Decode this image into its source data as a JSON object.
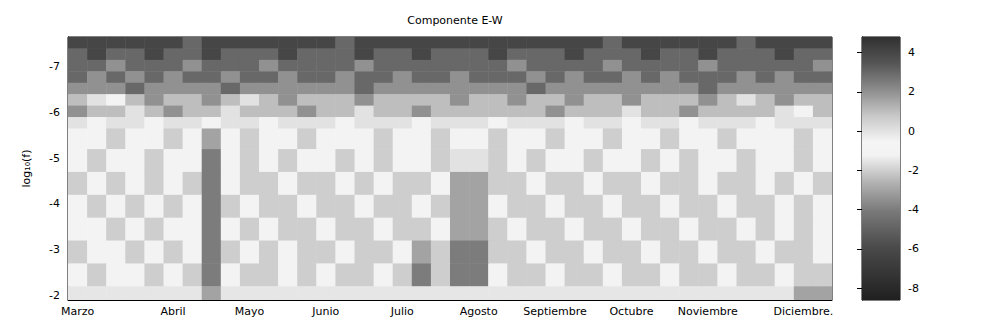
{
  "chart_data": {
    "type": "heatmap",
    "title": "Componente E-W",
    "y_label": "log₁₀(f)",
    "categories": [
      "Marzo",
      null,
      null,
      null,
      null,
      "Abril",
      null,
      null,
      null,
      "Mayo",
      null,
      null,
      null,
      "Junio",
      null,
      null,
      null,
      "Julio",
      null,
      null,
      null,
      "Agosto",
      null,
      null,
      null,
      "Septiembre",
      null,
      null,
      null,
      "Octubre",
      null,
      null,
      null,
      "Noviembre",
      null,
      null,
      null,
      null,
      "Diciembre.",
      null
    ],
    "ylim": [
      -7.65,
      -1.9
    ],
    "yticks": [
      -7,
      -6,
      -5,
      -4,
      -3,
      -2
    ],
    "row_edges": [
      -7.65,
      -7.4,
      -7.15,
      -6.9,
      -6.65,
      -6.4,
      -6.15,
      -5.9,
      -5.65,
      -5.2,
      -4.7,
      -4.2,
      -3.7,
      -3.2,
      -2.7,
      -2.2,
      -1.9
    ],
    "cells": [
      [
        4,
        4,
        4,
        4,
        4,
        4,
        3,
        4,
        4,
        4,
        4,
        4,
        4,
        4,
        3,
        4,
        4,
        4,
        4,
        4,
        4,
        4,
        4,
        4,
        4,
        4,
        4,
        4,
        3,
        4,
        4,
        4,
        4,
        4,
        4,
        3,
        4,
        4,
        4,
        4
      ],
      [
        3,
        4,
        3,
        3,
        4,
        3,
        3,
        4,
        3,
        3,
        3,
        4,
        3,
        3,
        3,
        4,
        3,
        3,
        4,
        3,
        3,
        3,
        4,
        3,
        3,
        3,
        4,
        3,
        3,
        3,
        4,
        3,
        3,
        4,
        3,
        3,
        3,
        4,
        3,
        3
      ],
      [
        3,
        3,
        2,
        3,
        3,
        3,
        2,
        3,
        3,
        3,
        2,
        3,
        3,
        3,
        3,
        2,
        3,
        3,
        3,
        3,
        3,
        3,
        3,
        2,
        3,
        3,
        3,
        3,
        2,
        3,
        3,
        3,
        3,
        2,
        3,
        3,
        3,
        3,
        3,
        2
      ],
      [
        3,
        2,
        3,
        2,
        3,
        2,
        3,
        3,
        2,
        3,
        3,
        2,
        3,
        3,
        2,
        3,
        3,
        2,
        3,
        3,
        2,
        3,
        3,
        3,
        2,
        3,
        2,
        3,
        3,
        2,
        3,
        2,
        3,
        3,
        3,
        2,
        3,
        2,
        3,
        3
      ],
      [
        2,
        2,
        2,
        3,
        2,
        2,
        2,
        2,
        3,
        2,
        2,
        2,
        2,
        2,
        2,
        3,
        2,
        2,
        2,
        2,
        2,
        2,
        2,
        2,
        3,
        2,
        2,
        2,
        2,
        2,
        2,
        2,
        2,
        3,
        2,
        2,
        2,
        2,
        2,
        2
      ],
      [
        1,
        0,
        -1,
        1,
        2,
        1,
        1,
        2,
        1,
        0,
        1,
        2,
        1,
        1,
        1,
        2,
        1,
        1,
        1,
        1,
        2,
        1,
        1,
        2,
        1,
        1,
        2,
        1,
        1,
        2,
        1,
        1,
        1,
        2,
        1,
        0,
        1,
        2,
        1,
        1
      ],
      [
        2,
        1,
        1,
        0,
        1,
        2,
        1,
        1,
        0,
        1,
        1,
        1,
        2,
        1,
        1,
        0,
        1,
        1,
        2,
        1,
        1,
        1,
        1,
        1,
        1,
        2,
        1,
        1,
        1,
        0,
        1,
        1,
        2,
        1,
        1,
        1,
        1,
        0,
        -1,
        1
      ],
      [
        0,
        -1,
        0,
        0,
        -1,
        0,
        0,
        -1,
        0,
        0,
        -1,
        0,
        0,
        0,
        -1,
        0,
        0,
        0,
        -1,
        0,
        0,
        0,
        -1,
        0,
        0,
        0,
        -1,
        0,
        0,
        -1,
        0,
        0,
        -1,
        0,
        0,
        0,
        -1,
        0,
        0,
        0
      ],
      [
        -1,
        -1,
        -2,
        -1,
        -1,
        -2,
        -1,
        -3,
        -1,
        -2,
        -1,
        -1,
        -2,
        -1,
        -1,
        -1,
        -2,
        -1,
        -1,
        -2,
        -1,
        -1,
        -2,
        -1,
        -1,
        -2,
        -1,
        -1,
        -2,
        -1,
        -1,
        -2,
        -1,
        -1,
        -2,
        -1,
        -1,
        -1,
        -2,
        -1
      ],
      [
        -1,
        -2,
        -1,
        -1,
        -2,
        -1,
        -1,
        -4,
        -1,
        -2,
        -1,
        -2,
        -1,
        -1,
        -2,
        -1,
        -2,
        -1,
        -1,
        -2,
        0,
        0,
        -2,
        -1,
        -2,
        -1,
        -1,
        -2,
        -1,
        -1,
        -2,
        -1,
        -2,
        -1,
        -1,
        -2,
        -1,
        -1,
        -2,
        -1
      ],
      [
        -2,
        -1,
        -2,
        -1,
        -2,
        -1,
        -2,
        -4,
        -1,
        -2,
        -2,
        -1,
        -2,
        -2,
        -1,
        -2,
        -1,
        -2,
        -2,
        -1,
        -3,
        -3,
        -2,
        -2,
        -1,
        -2,
        -2,
        -1,
        -2,
        -2,
        -1,
        -2,
        -2,
        -1,
        -2,
        -2,
        -1,
        -2,
        -1,
        -2
      ],
      [
        -1,
        -2,
        -1,
        -2,
        -1,
        -2,
        -1,
        -4,
        -2,
        -1,
        -2,
        -2,
        -1,
        -2,
        -2,
        -1,
        -2,
        -2,
        -1,
        -2,
        -3,
        -3,
        -1,
        -2,
        -2,
        -1,
        -2,
        -2,
        -1,
        -2,
        -2,
        -1,
        -2,
        -2,
        -1,
        -2,
        -2,
        -1,
        -2,
        -1
      ],
      [
        -1,
        -1,
        -2,
        -1,
        -2,
        -1,
        -1,
        -4,
        -1,
        -2,
        -1,
        -2,
        -2,
        -1,
        -2,
        -2,
        -1,
        -2,
        -2,
        -1,
        -3,
        -3,
        -2,
        -1,
        -2,
        -2,
        -1,
        -2,
        -2,
        -1,
        -2,
        -2,
        -1,
        -2,
        -2,
        -1,
        -2,
        -1,
        -2,
        -1
      ],
      [
        -2,
        -1,
        -1,
        -2,
        -1,
        -2,
        -1,
        -4,
        -2,
        -1,
        -2,
        -1,
        -2,
        -2,
        -1,
        -2,
        -2,
        -1,
        -3,
        -2,
        -4,
        -4,
        -2,
        -2,
        -1,
        -2,
        -2,
        -1,
        -2,
        -2,
        -1,
        -2,
        -2,
        -1,
        -2,
        -2,
        -1,
        -2,
        -2,
        -1
      ],
      [
        -1,
        -2,
        -1,
        -1,
        -2,
        -1,
        -2,
        -4,
        -1,
        -2,
        -2,
        -1,
        -2,
        -1,
        -2,
        -2,
        -1,
        -2,
        -4,
        -2,
        -4,
        -4,
        -1,
        -2,
        -2,
        -1,
        -2,
        -2,
        -1,
        -2,
        -2,
        -1,
        -2,
        -2,
        -1,
        -2,
        -2,
        -1,
        -2,
        -2
      ],
      [
        -1.5,
        -1.5,
        -1.5,
        -1.5,
        -1.5,
        -1.5,
        -1.5,
        -3,
        -1.5,
        -1.5,
        -1.5,
        -1.5,
        -1.5,
        -1.5,
        -1.5,
        -1.5,
        -1.5,
        -1.5,
        -1.5,
        -1.5,
        -1.5,
        -1.5,
        -1.5,
        -1.5,
        -1.5,
        -1.5,
        -1.5,
        -1.5,
        -1.5,
        -1.5,
        -1.5,
        -1.5,
        -1.5,
        -1.5,
        -1.5,
        -1.5,
        -1.5,
        -1.5,
        -3,
        -3
      ]
    ],
    "colorbar_range": [
      -8.6,
      4.8
    ],
    "colorbar_ticks": [
      -8,
      -6,
      -4,
      -2,
      0,
      2,
      4
    ]
  }
}
